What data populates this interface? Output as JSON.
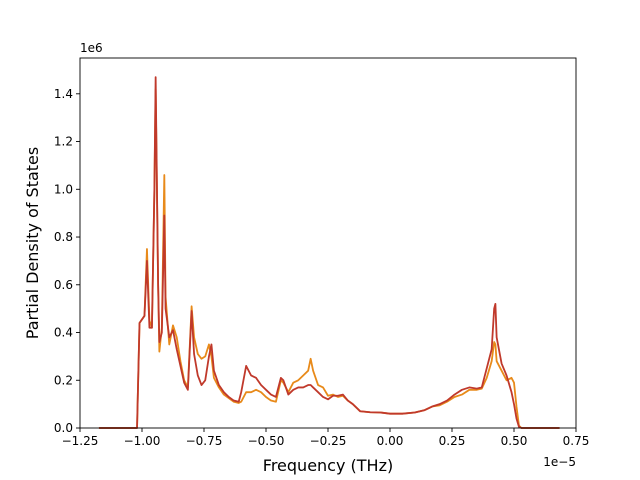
{
  "chart_data": {
    "type": "line",
    "xlabel": "Frequency (THz)",
    "ylabel": "Partial Density of States",
    "x_offset_label": "1e−5",
    "y_offset_label": "1e6",
    "x_scale": 1e-05,
    "y_scale": 1000000.0,
    "xlim": [
      -1.25,
      0.75
    ],
    "ylim": [
      0,
      1.55
    ],
    "x_ticks": [
      -1.25,
      -1.0,
      -0.75,
      -0.5,
      -0.25,
      0.0,
      0.25,
      0.5,
      0.75
    ],
    "x_tick_labels": [
      "−1.25",
      "−1.00",
      "−0.75",
      "−0.50",
      "−0.25",
      "0.00",
      "0.25",
      "0.50",
      "0.75"
    ],
    "y_ticks": [
      0,
      0.2,
      0.4,
      0.6,
      0.8,
      1.0,
      1.2,
      1.4
    ],
    "y_tick_labels": [
      "0.0",
      "0.2",
      "0.4",
      "0.6",
      "0.8",
      "1.0",
      "1.2",
      "1.4"
    ],
    "grid": false,
    "series": [
      {
        "color": "#e88a1a",
        "points": [
          [
            -1.17,
            0
          ],
          [
            -1.02,
            0
          ],
          [
            -1.01,
            0.44
          ],
          [
            -0.99,
            0.47
          ],
          [
            -0.98,
            0.75
          ],
          [
            -0.97,
            0.45
          ],
          [
            -0.96,
            0.42
          ],
          [
            -0.95,
            1.0
          ],
          [
            -0.945,
            1.42
          ],
          [
            -0.935,
            0.6
          ],
          [
            -0.93,
            0.32
          ],
          [
            -0.92,
            0.42
          ],
          [
            -0.91,
            1.06
          ],
          [
            -0.905,
            0.55
          ],
          [
            -0.89,
            0.35
          ],
          [
            -0.875,
            0.43
          ],
          [
            -0.86,
            0.38
          ],
          [
            -0.845,
            0.28
          ],
          [
            -0.83,
            0.2
          ],
          [
            -0.815,
            0.17
          ],
          [
            -0.8,
            0.51
          ],
          [
            -0.79,
            0.38
          ],
          [
            -0.775,
            0.31
          ],
          [
            -0.76,
            0.29
          ],
          [
            -0.745,
            0.3
          ],
          [
            -0.73,
            0.35
          ],
          [
            -0.72,
            0.3
          ],
          [
            -0.71,
            0.21
          ],
          [
            -0.69,
            0.17
          ],
          [
            -0.67,
            0.14
          ],
          [
            -0.65,
            0.125
          ],
          [
            -0.63,
            0.11
          ],
          [
            -0.61,
            0.105
          ],
          [
            -0.6,
            0.11
          ],
          [
            -0.58,
            0.15
          ],
          [
            -0.56,
            0.15
          ],
          [
            -0.54,
            0.16
          ],
          [
            -0.52,
            0.15
          ],
          [
            -0.5,
            0.13
          ],
          [
            -0.48,
            0.115
          ],
          [
            -0.46,
            0.11
          ],
          [
            -0.44,
            0.2
          ],
          [
            -0.43,
            0.19
          ],
          [
            -0.41,
            0.15
          ],
          [
            -0.39,
            0.19
          ],
          [
            -0.37,
            0.2
          ],
          [
            -0.35,
            0.22
          ],
          [
            -0.33,
            0.24
          ],
          [
            -0.32,
            0.29
          ],
          [
            -0.31,
            0.24
          ],
          [
            -0.29,
            0.18
          ],
          [
            -0.27,
            0.17
          ],
          [
            -0.25,
            0.135
          ],
          [
            -0.23,
            0.14
          ],
          [
            -0.21,
            0.13
          ],
          [
            -0.19,
            0.135
          ],
          [
            -0.17,
            0.115
          ],
          [
            -0.15,
            0.1
          ],
          [
            -0.12,
            0.07
          ],
          [
            -0.08,
            0.066
          ],
          [
            -0.04,
            0.065
          ],
          [
            0.0,
            0.06
          ],
          [
            0.05,
            0.06
          ],
          [
            0.1,
            0.065
          ],
          [
            0.14,
            0.075
          ],
          [
            0.17,
            0.09
          ],
          [
            0.2,
            0.095
          ],
          [
            0.23,
            0.11
          ],
          [
            0.26,
            0.13
          ],
          [
            0.29,
            0.14
          ],
          [
            0.32,
            0.16
          ],
          [
            0.35,
            0.16
          ],
          [
            0.37,
            0.165
          ],
          [
            0.39,
            0.21
          ],
          [
            0.41,
            0.28
          ],
          [
            0.42,
            0.36
          ],
          [
            0.425,
            0.35
          ],
          [
            0.43,
            0.28
          ],
          [
            0.45,
            0.24
          ],
          [
            0.47,
            0.2
          ],
          [
            0.49,
            0.21
          ],
          [
            0.5,
            0.19
          ],
          [
            0.51,
            0.09
          ],
          [
            0.52,
            0.01
          ],
          [
            0.53,
            0
          ],
          [
            0.68,
            0
          ]
        ]
      },
      {
        "color": "#c0392b",
        "points": [
          [
            -1.17,
            0
          ],
          [
            -1.02,
            0
          ],
          [
            -1.01,
            0.44
          ],
          [
            -0.99,
            0.47
          ],
          [
            -0.98,
            0.7
          ],
          [
            -0.97,
            0.42
          ],
          [
            -0.96,
            0.42
          ],
          [
            -0.95,
            1.0
          ],
          [
            -0.945,
            1.47
          ],
          [
            -0.935,
            0.6
          ],
          [
            -0.93,
            0.36
          ],
          [
            -0.92,
            0.4
          ],
          [
            -0.91,
            0.89
          ],
          [
            -0.905,
            0.5
          ],
          [
            -0.89,
            0.38
          ],
          [
            -0.875,
            0.41
          ],
          [
            -0.86,
            0.33
          ],
          [
            -0.845,
            0.26
          ],
          [
            -0.83,
            0.19
          ],
          [
            -0.815,
            0.16
          ],
          [
            -0.8,
            0.49
          ],
          [
            -0.79,
            0.31
          ],
          [
            -0.775,
            0.22
          ],
          [
            -0.76,
            0.18
          ],
          [
            -0.745,
            0.2
          ],
          [
            -0.73,
            0.3
          ],
          [
            -0.72,
            0.35
          ],
          [
            -0.71,
            0.24
          ],
          [
            -0.69,
            0.18
          ],
          [
            -0.67,
            0.15
          ],
          [
            -0.65,
            0.13
          ],
          [
            -0.63,
            0.115
          ],
          [
            -0.61,
            0.11
          ],
          [
            -0.6,
            0.15
          ],
          [
            -0.58,
            0.26
          ],
          [
            -0.56,
            0.22
          ],
          [
            -0.54,
            0.21
          ],
          [
            -0.52,
            0.18
          ],
          [
            -0.5,
            0.16
          ],
          [
            -0.48,
            0.14
          ],
          [
            -0.46,
            0.13
          ],
          [
            -0.44,
            0.21
          ],
          [
            -0.43,
            0.2
          ],
          [
            -0.41,
            0.14
          ],
          [
            -0.39,
            0.16
          ],
          [
            -0.37,
            0.17
          ],
          [
            -0.35,
            0.17
          ],
          [
            -0.33,
            0.18
          ],
          [
            -0.32,
            0.18
          ],
          [
            -0.31,
            0.17
          ],
          [
            -0.29,
            0.15
          ],
          [
            -0.27,
            0.13
          ],
          [
            -0.25,
            0.12
          ],
          [
            -0.23,
            0.135
          ],
          [
            -0.21,
            0.135
          ],
          [
            -0.19,
            0.14
          ],
          [
            -0.17,
            0.115
          ],
          [
            -0.15,
            0.1
          ],
          [
            -0.12,
            0.07
          ],
          [
            -0.08,
            0.066
          ],
          [
            -0.04,
            0.065
          ],
          [
            0.0,
            0.06
          ],
          [
            0.05,
            0.06
          ],
          [
            0.1,
            0.065
          ],
          [
            0.14,
            0.075
          ],
          [
            0.17,
            0.09
          ],
          [
            0.2,
            0.1
          ],
          [
            0.23,
            0.115
          ],
          [
            0.26,
            0.14
          ],
          [
            0.29,
            0.16
          ],
          [
            0.32,
            0.17
          ],
          [
            0.35,
            0.165
          ],
          [
            0.37,
            0.17
          ],
          [
            0.39,
            0.25
          ],
          [
            0.41,
            0.33
          ],
          [
            0.42,
            0.5
          ],
          [
            0.425,
            0.52
          ],
          [
            0.43,
            0.38
          ],
          [
            0.45,
            0.27
          ],
          [
            0.47,
            0.22
          ],
          [
            0.49,
            0.15
          ],
          [
            0.5,
            0.1
          ],
          [
            0.51,
            0.04
          ],
          [
            0.52,
            0.005
          ],
          [
            0.53,
            0
          ],
          [
            0.68,
            0
          ]
        ]
      }
    ]
  }
}
